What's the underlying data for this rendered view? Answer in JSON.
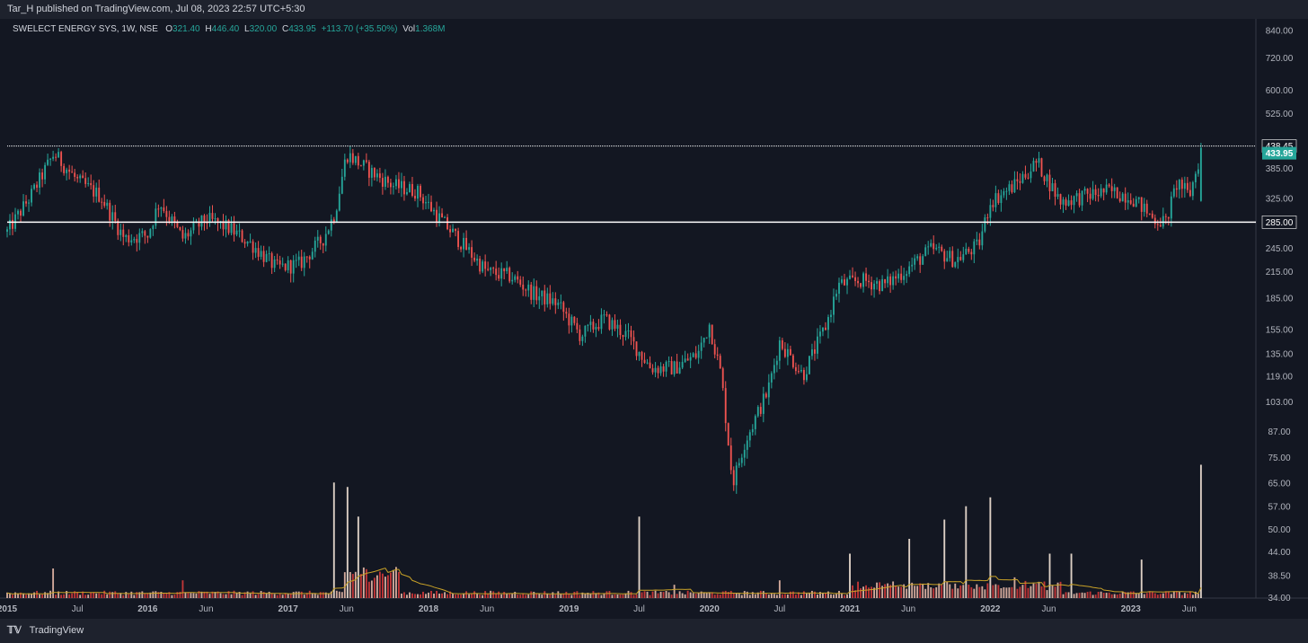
{
  "header": {
    "published": "Tar_H published on TradingView.com, Jul 08, 2023 22:57 UTC+5:30"
  },
  "legend": {
    "symbol": "SWELECT ENERGY SYS, 1W, NSE",
    "o_label": "O",
    "o": "321.40",
    "h_label": "H",
    "h": "446.40",
    "l_label": "L",
    "l": "320.00",
    "c_label": "C",
    "c": "433.95",
    "change": "+113.70 (+35.50%)",
    "vol_label": "Vol",
    "vol": "1.368M"
  },
  "footer": {
    "brand": "TradingView"
  },
  "colors": {
    "background": "#131722",
    "up": "#26a69a",
    "down": "#ef5350",
    "volume_ma": "#c9a227",
    "hline": "#ffffff",
    "price_tag": "#26a69a"
  },
  "chart_data": {
    "type": "candlestick",
    "scale": "log",
    "ylim": [
      34,
      900
    ],
    "y_ticks": [
      "840.00",
      "720.00",
      "600.00",
      "525.00",
      "385.00",
      "325.00",
      "245.00",
      "215.00",
      "185.00",
      "155.00",
      "135.00",
      "119.00",
      "103.00",
      "87.00",
      "75.00",
      "65.00",
      "57.00",
      "50.00",
      "44.00",
      "38.50",
      "34.00"
    ],
    "x_ticks": [
      "2015",
      "Jul",
      "2016",
      "Jun",
      "2017",
      "Jun",
      "2018",
      "Jun",
      "2019",
      "Jul",
      "2020",
      "Jul",
      "2021",
      "Jun",
      "2022",
      "Jun",
      "2023",
      "Jun"
    ],
    "horizontal_lines": [
      {
        "value": 438.45,
        "label": "438.45",
        "style": "dotted"
      },
      {
        "value": 285.0,
        "label": "285.00",
        "style": "solid"
      }
    ],
    "last_price": {
      "value": 433.95,
      "label": "433.95"
    },
    "price_path": [
      [
        "2015-01",
        270
      ],
      [
        "2015-03",
        330
      ],
      [
        "2015-05",
        420
      ],
      [
        "2015-07",
        360
      ],
      [
        "2015-09",
        330
      ],
      [
        "2015-11",
        260
      ],
      [
        "2016-01",
        265
      ],
      [
        "2016-02",
        320
      ],
      [
        "2016-04",
        260
      ],
      [
        "2016-06",
        290
      ],
      [
        "2016-08",
        275
      ],
      [
        "2016-10",
        250
      ],
      [
        "2016-12",
        220
      ],
      [
        "2017-02",
        225
      ],
      [
        "2017-04",
        260
      ],
      [
        "2017-05",
        300
      ],
      [
        "2017-06",
        420
      ],
      [
        "2017-08",
        380
      ],
      [
        "2017-10",
        350
      ],
      [
        "2017-12",
        340
      ],
      [
        "2018-02",
        290
      ],
      [
        "2018-04",
        250
      ],
      [
        "2018-06",
        215
      ],
      [
        "2018-08",
        210
      ],
      [
        "2018-10",
        190
      ],
      [
        "2018-12",
        180
      ],
      [
        "2019-02",
        150
      ],
      [
        "2019-04",
        165
      ],
      [
        "2019-06",
        150
      ],
      [
        "2019-08",
        125
      ],
      [
        "2019-10",
        125
      ],
      [
        "2019-12",
        135
      ],
      [
        "2020-01",
        160
      ],
      [
        "2020-02",
        120
      ],
      [
        "2020-03",
        65
      ],
      [
        "2020-04",
        82
      ],
      [
        "2020-06",
        110
      ],
      [
        "2020-07",
        145
      ],
      [
        "2020-09",
        120
      ],
      [
        "2020-11",
        160
      ],
      [
        "2020-12",
        200
      ],
      [
        "2021-02",
        205
      ],
      [
        "2021-04",
        200
      ],
      [
        "2021-06",
        220
      ],
      [
        "2021-08",
        245
      ],
      [
        "2021-10",
        230
      ],
      [
        "2021-12",
        250
      ],
      [
        "2022-01",
        320
      ],
      [
        "2022-03",
        350
      ],
      [
        "2022-05",
        400
      ],
      [
        "2022-07",
        320
      ],
      [
        "2022-09",
        330
      ],
      [
        "2022-11",
        340
      ],
      [
        "2023-01",
        330
      ],
      [
        "2023-03",
        290
      ],
      [
        "2023-04",
        285
      ],
      [
        "2023-05",
        360
      ],
      [
        "2023-06",
        330
      ],
      [
        "2023-07",
        433.95
      ]
    ],
    "volume": {
      "last_bar": "1.368M",
      "spikes": [
        [
          "2015-05",
          0.2
        ],
        [
          "2016-04",
          0.12
        ],
        [
          "2017-05",
          0.78
        ],
        [
          "2017-06",
          0.75
        ],
        [
          "2017-07",
          0.55
        ],
        [
          "2019-07",
          0.55
        ],
        [
          "2019-10",
          0.09
        ],
        [
          "2020-07",
          0.12
        ],
        [
          "2021-01",
          0.3
        ],
        [
          "2021-06",
          0.4
        ],
        [
          "2021-09",
          0.53
        ],
        [
          "2021-11",
          0.62
        ],
        [
          "2022-01",
          0.68
        ],
        [
          "2022-03",
          0.14
        ],
        [
          "2022-06",
          0.3
        ],
        [
          "2022-08",
          0.3
        ],
        [
          "2023-02",
          0.26
        ],
        [
          "2023-07",
          0.9
        ]
      ]
    }
  }
}
